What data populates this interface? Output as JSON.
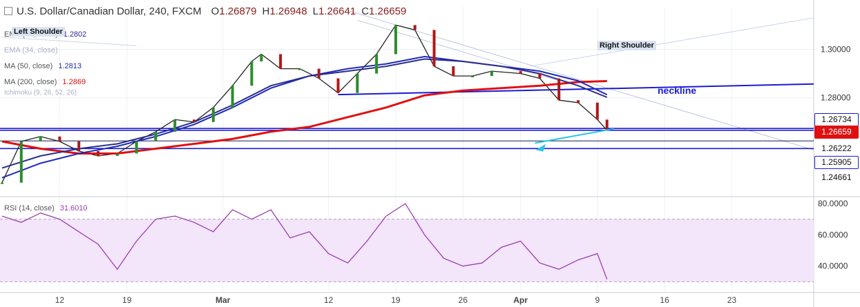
{
  "header": {
    "symbol": "U.S. Dollar/Canadian Dollar, 240, FXCM",
    "o_label": "O",
    "o_value": "1.26879",
    "h_label": "H",
    "h_value": "1.26948",
    "l_label": "L",
    "l_value": "1.26641",
    "c_label": "C",
    "c_value": "1.26659"
  },
  "legend": [
    {
      "label": "EMA (55, close)",
      "value": "1.2802",
      "color": "#2b2e8c"
    },
    {
      "label": "EMA (34, close)",
      "value": "",
      "color": "#aab0c8"
    },
    {
      "label": "MA (50, close)",
      "value": "1.2813",
      "color": "#1f2ab8"
    },
    {
      "label": "MA (200, close)",
      "value": "1.2869",
      "color": "#e01010"
    },
    {
      "label": "Ichimoku (9, 26, 52, 26)",
      "value": "",
      "color": "#aab0c8"
    }
  ],
  "annotations": {
    "left_shoulder": "Left Shoulder",
    "right_shoulder": "Right Shoulder",
    "neckline": "neckline"
  },
  "price_labels": [
    {
      "text": "1.26734",
      "bg": "#ffffff",
      "fg": "#111111",
      "border": "#1a1ad6"
    },
    {
      "text": "1.26659",
      "bg": "#e01010",
      "fg": "#ffffff",
      "border": "#e01010"
    },
    {
      "text": "1.26222",
      "bg": "#ffffff",
      "fg": "#111111",
      "border": "#ffffff"
    },
    {
      "text": "1.25905",
      "bg": "#ffffff",
      "fg": "#111111",
      "border": "#1a1ad6"
    },
    {
      "text": "1.24661",
      "bg": "#ffffff",
      "fg": "#111111",
      "border": "#ffffff"
    }
  ],
  "rsi": {
    "label": "RSI (14, close)",
    "value": "31.6010"
  },
  "chart_data": [
    {
      "type": "line",
      "title": "U.S. Dollar/Canadian Dollar, 240, FXCM",
      "x_ticks": [
        "12",
        "19",
        "Mar",
        "12",
        "19",
        "26",
        "Apr",
        "9",
        "16",
        "23"
      ],
      "y_ticks": [
        "1.30000",
        "1.28000"
      ],
      "ylim": [
        1.2395,
        1.3175
      ],
      "grid": true,
      "series": [
        {
          "name": "Price",
          "color": "#222222",
          "x": [
            "Feb 6",
            "Feb 8",
            "Feb 10",
            "Feb 12",
            "Feb 14",
            "Feb 16",
            "Feb 18",
            "Feb 20",
            "Feb 22",
            "Feb 24",
            "Feb 26",
            "Feb 28",
            "Mar 2",
            "Mar 4",
            "Mar 5",
            "Mar 7",
            "Mar 9",
            "Mar 11",
            "Mar 13",
            "Mar 15",
            "Mar 17",
            "Mar 19",
            "Mar 21",
            "Mar 23",
            "Mar 25",
            "Mar 27",
            "Mar 29",
            "Apr 1",
            "Apr 3",
            "Apr 5",
            "Apr 7",
            "Apr 9",
            "Apr 10"
          ],
          "values": [
            1.245,
            1.262,
            1.264,
            1.262,
            1.258,
            1.256,
            1.257,
            1.262,
            1.266,
            1.271,
            1.27,
            1.276,
            1.285,
            1.295,
            1.298,
            1.292,
            1.292,
            1.288,
            1.282,
            1.29,
            1.298,
            1.31,
            1.308,
            1.293,
            1.289,
            1.289,
            1.291,
            1.29,
            1.288,
            1.279,
            1.278,
            1.271,
            1.2666
          ]
        },
        {
          "name": "MA (200, close)",
          "color": "#e01010",
          "x": [
            "Feb 6",
            "Feb 10",
            "Feb 14",
            "Feb 18",
            "Feb 22",
            "Feb 26",
            "Mar 2",
            "Mar 6",
            "Mar 10",
            "Mar 14",
            "Mar 18",
            "Mar 22",
            "Mar 26",
            "Mar 30",
            "Apr 3",
            "Apr 7",
            "Apr 10"
          ],
          "values": [
            1.262,
            1.259,
            1.257,
            1.257,
            1.259,
            1.261,
            1.263,
            1.266,
            1.268,
            1.272,
            1.276,
            1.281,
            1.283,
            1.284,
            1.285,
            1.2865,
            1.2869
          ]
        },
        {
          "name": "MA (50, close)",
          "color": "#1f2ab8",
          "x": [
            "Feb 6",
            "Feb 10",
            "Feb 14",
            "Feb 18",
            "Feb 22",
            "Feb 26",
            "Mar 2",
            "Mar 6",
            "Mar 10",
            "Mar 14",
            "Mar 18",
            "Mar 22",
            "Mar 26",
            "Mar 30",
            "Apr 3",
            "Apr 7",
            "Apr 10"
          ],
          "values": [
            1.247,
            1.253,
            1.257,
            1.26,
            1.264,
            1.269,
            1.276,
            1.284,
            1.289,
            1.292,
            1.294,
            1.297,
            1.295,
            1.293,
            1.291,
            1.287,
            1.2813
          ]
        },
        {
          "name": "EMA (55, close)",
          "color": "#2b2e8c",
          "x": [
            "Feb 6",
            "Feb 10",
            "Feb 14",
            "Feb 18",
            "Feb 22",
            "Feb 26",
            "Mar 2",
            "Mar 6",
            "Mar 10",
            "Mar 14",
            "Mar 18",
            "Mar 22",
            "Mar 26",
            "Mar 30",
            "Apr 3",
            "Apr 7",
            "Apr 10"
          ],
          "values": [
            1.251,
            1.256,
            1.259,
            1.261,
            1.265,
            1.27,
            1.277,
            1.285,
            1.289,
            1.291,
            1.293,
            1.296,
            1.295,
            1.293,
            1.29,
            1.285,
            1.2802
          ]
        }
      ],
      "horizontal_lines": [
        1.26734,
        1.26659,
        1.26222,
        1.25905
      ],
      "trendline_neckline": {
        "x": [
          "Mar 13",
          "Apr 25"
        ],
        "y": [
          1.2813,
          1.2857
        ]
      }
    },
    {
      "type": "line",
      "title": "RSI (14, close)",
      "y_ticks": [
        "80.0000",
        "60.0000",
        "40.0000"
      ],
      "ylim": [
        24,
        84
      ],
      "band": [
        30,
        70
      ],
      "series": [
        {
          "name": "RSI (14, close)",
          "color": "#9b3fb0",
          "x": [
            "Feb 6",
            "Feb 8",
            "Feb 10",
            "Feb 12",
            "Feb 14",
            "Feb 16",
            "Feb 18",
            "Feb 20",
            "Feb 22",
            "Feb 24",
            "Feb 26",
            "Feb 28",
            "Mar 2",
            "Mar 4",
            "Mar 6",
            "Mar 8",
            "Mar 10",
            "Mar 12",
            "Mar 14",
            "Mar 16",
            "Mar 18",
            "Mar 20",
            "Mar 22",
            "Mar 24",
            "Mar 26",
            "Mar 28",
            "Mar 30",
            "Apr 1",
            "Apr 3",
            "Apr 5",
            "Apr 7",
            "Apr 9",
            "Apr 10"
          ],
          "values": [
            72,
            68,
            74,
            70,
            62,
            54,
            38,
            56,
            70,
            72,
            68,
            62,
            76,
            70,
            76,
            58,
            62,
            48,
            42,
            56,
            72,
            80,
            60,
            45,
            40,
            42,
            52,
            56,
            42,
            38,
            44,
            48,
            31.6
          ]
        }
      ]
    }
  ]
}
